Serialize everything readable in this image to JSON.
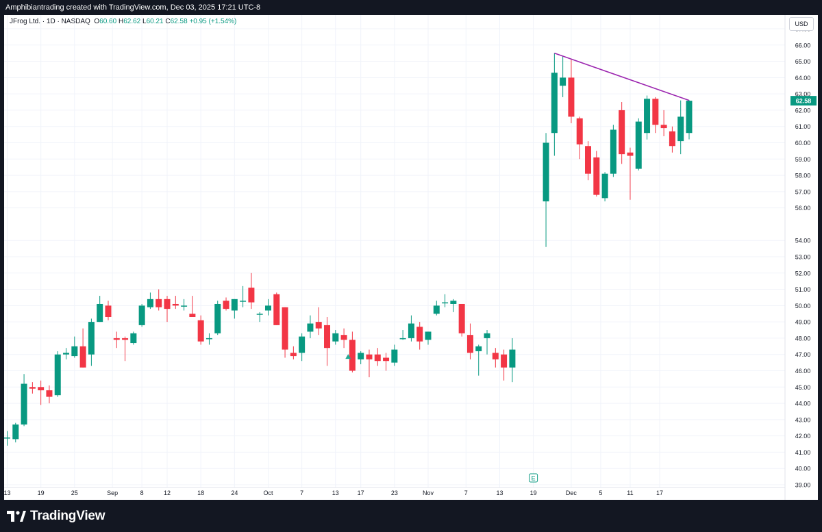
{
  "header": {
    "attribution": "Amphibiantrading created with TradingView.com, Dec 03, 2025 17:21 UTC-8"
  },
  "legend": {
    "symbol": "JFrog Ltd. · 1D · NASDAQ",
    "o_label": "O",
    "o_value": "60.60",
    "h_label": "H",
    "h_value": "62.62",
    "l_label": "L",
    "l_value": "60.21",
    "c_label": "C",
    "c_value": "62.58",
    "change": "+0.95 (+1.54%)"
  },
  "currency_button": "USD",
  "brand": {
    "name": "TradingView"
  },
  "colors": {
    "up": "#089981",
    "down": "#f23645",
    "trendline": "#9c27b0",
    "background": "#131722",
    "grid": "#f0f3fa"
  },
  "earnings_marker": "E",
  "chart_data": {
    "type": "candlestick",
    "title": "JFrog Ltd. · 1D · NASDAQ",
    "ylim": [
      39,
      67
    ],
    "y_ticks": [
      "67.00",
      "66.00",
      "65.00",
      "64.00",
      "63.00",
      "62.00",
      "61.00",
      "60.00",
      "59.00",
      "58.00",
      "57.00",
      "56.00",
      "54.00",
      "53.00",
      "52.00",
      "51.00",
      "50.00",
      "49.00",
      "48.00",
      "47.00",
      "46.00",
      "45.00",
      "44.00",
      "43.00",
      "42.00",
      "41.00",
      "40.00",
      "39.00"
    ],
    "last_price": "62.58",
    "x_tick_labels": [
      "13",
      "19",
      "25",
      "Sep",
      "8",
      "12",
      "18",
      "24",
      "Oct",
      "7",
      "13",
      "17",
      "23",
      "Nov",
      "7",
      "13",
      "19",
      "Dec",
      "5",
      "11",
      "17"
    ],
    "grid": true,
    "candles": [
      {
        "o": 41.9,
        "h": 42.3,
        "l": 41.4,
        "c": 41.9
      },
      {
        "o": 41.8,
        "h": 42.8,
        "l": 41.6,
        "c": 42.7
      },
      {
        "o": 42.7,
        "h": 45.8,
        "l": 42.6,
        "c": 45.2
      },
      {
        "o": 45.0,
        "h": 45.3,
        "l": 44.6,
        "c": 44.9
      },
      {
        "o": 45.0,
        "h": 45.4,
        "l": 43.9,
        "c": 44.8
      },
      {
        "o": 44.8,
        "h": 45.1,
        "l": 44.0,
        "c": 44.4
      },
      {
        "o": 44.5,
        "h": 47.2,
        "l": 44.4,
        "c": 47.0
      },
      {
        "o": 47.0,
        "h": 47.4,
        "l": 46.7,
        "c": 47.1
      },
      {
        "o": 46.9,
        "h": 48.1,
        "l": 46.8,
        "c": 47.5
      },
      {
        "o": 47.5,
        "h": 48.6,
        "l": 46.2,
        "c": 46.2
      },
      {
        "o": 47.0,
        "h": 49.2,
        "l": 46.3,
        "c": 49.0
      },
      {
        "o": 49.0,
        "h": 50.6,
        "l": 49.0,
        "c": 50.1
      },
      {
        "o": 50.0,
        "h": 50.3,
        "l": 49.1,
        "c": 49.3
      },
      {
        "o": 48.0,
        "h": 48.4,
        "l": 47.4,
        "c": 47.9
      },
      {
        "o": 48.0,
        "h": 48.1,
        "l": 46.6,
        "c": 47.9
      },
      {
        "o": 47.7,
        "h": 48.4,
        "l": 47.6,
        "c": 48.3
      },
      {
        "o": 48.8,
        "h": 50.1,
        "l": 48.7,
        "c": 50.0
      },
      {
        "o": 49.9,
        "h": 50.8,
        "l": 49.8,
        "c": 50.4
      },
      {
        "o": 50.4,
        "h": 51.0,
        "l": 49.7,
        "c": 49.9
      },
      {
        "o": 50.4,
        "h": 50.6,
        "l": 49.0,
        "c": 49.8
      },
      {
        "o": 50.1,
        "h": 50.6,
        "l": 49.8,
        "c": 50.0
      },
      {
        "o": 50.0,
        "h": 50.4,
        "l": 49.7,
        "c": 50.0
      },
      {
        "o": 49.5,
        "h": 50.6,
        "l": 49.3,
        "c": 49.3
      },
      {
        "o": 49.1,
        "h": 49.4,
        "l": 47.6,
        "c": 47.8
      },
      {
        "o": 48.0,
        "h": 48.3,
        "l": 47.6,
        "c": 48.0
      },
      {
        "o": 48.3,
        "h": 50.3,
        "l": 48.2,
        "c": 50.1
      },
      {
        "o": 50.3,
        "h": 50.5,
        "l": 49.7,
        "c": 49.8
      },
      {
        "o": 49.7,
        "h": 50.4,
        "l": 49.2,
        "c": 50.4
      },
      {
        "o": 50.3,
        "h": 51.2,
        "l": 49.9,
        "c": 50.3
      },
      {
        "o": 51.1,
        "h": 52.0,
        "l": 49.8,
        "c": 50.2
      },
      {
        "o": 49.5,
        "h": 49.6,
        "l": 49.0,
        "c": 49.5
      },
      {
        "o": 49.7,
        "h": 50.4,
        "l": 49.4,
        "c": 50.0
      },
      {
        "o": 50.7,
        "h": 50.8,
        "l": 48.8,
        "c": 48.8
      },
      {
        "o": 49.9,
        "h": 49.9,
        "l": 46.8,
        "c": 47.3
      },
      {
        "o": 47.1,
        "h": 47.5,
        "l": 46.7,
        "c": 46.9
      },
      {
        "o": 47.1,
        "h": 48.3,
        "l": 46.6,
        "c": 48.1
      },
      {
        "o": 48.4,
        "h": 49.4,
        "l": 48.0,
        "c": 48.9
      },
      {
        "o": 49.0,
        "h": 49.9,
        "l": 48.2,
        "c": 48.6
      },
      {
        "o": 48.8,
        "h": 49.3,
        "l": 46.3,
        "c": 47.4
      },
      {
        "o": 47.8,
        "h": 48.5,
        "l": 47.6,
        "c": 48.3
      },
      {
        "o": 48.2,
        "h": 48.6,
        "l": 47.4,
        "c": 47.9
      },
      {
        "o": 47.9,
        "h": 48.4,
        "l": 45.9,
        "c": 46.0
      },
      {
        "o": 46.7,
        "h": 47.2,
        "l": 46.4,
        "c": 47.1
      },
      {
        "o": 47.0,
        "h": 47.3,
        "l": 45.6,
        "c": 46.7
      },
      {
        "o": 47.0,
        "h": 47.4,
        "l": 46.3,
        "c": 46.6
      },
      {
        "o": 46.8,
        "h": 47.1,
        "l": 46.0,
        "c": 46.6
      },
      {
        "o": 46.5,
        "h": 47.6,
        "l": 46.3,
        "c": 47.3
      },
      {
        "o": 48.0,
        "h": 48.5,
        "l": 47.9,
        "c": 48.0
      },
      {
        "o": 48.0,
        "h": 49.4,
        "l": 47.8,
        "c": 48.9
      },
      {
        "o": 48.7,
        "h": 49.0,
        "l": 47.3,
        "c": 47.8
      },
      {
        "o": 47.9,
        "h": 48.4,
        "l": 47.6,
        "c": 48.4
      },
      {
        "o": 49.5,
        "h": 50.3,
        "l": 49.4,
        "c": 50.0
      },
      {
        "o": 50.2,
        "h": 50.7,
        "l": 49.9,
        "c": 50.2
      },
      {
        "o": 50.1,
        "h": 50.4,
        "l": 49.6,
        "c": 50.3
      },
      {
        "o": 50.1,
        "h": 50.1,
        "l": 48.1,
        "c": 48.3
      },
      {
        "o": 48.2,
        "h": 48.9,
        "l": 46.7,
        "c": 47.1
      },
      {
        "o": 47.2,
        "h": 47.6,
        "l": 45.7,
        "c": 47.5
      },
      {
        "o": 48.0,
        "h": 48.5,
        "l": 47.0,
        "c": 48.3
      },
      {
        "o": 47.1,
        "h": 47.4,
        "l": 46.2,
        "c": 46.7
      },
      {
        "o": 47.0,
        "h": 47.3,
        "l": 45.4,
        "c": 46.2
      },
      {
        "o": 46.2,
        "h": 48.0,
        "l": 45.3,
        "c": 47.3
      },
      {
        "o": 56.4,
        "h": 60.6,
        "l": 53.6,
        "c": 60.0
      },
      {
        "o": 60.6,
        "h": 65.5,
        "l": 59.2,
        "c": 64.3
      },
      {
        "o": 63.5,
        "h": 65.3,
        "l": 62.8,
        "c": 64.0
      },
      {
        "o": 64.0,
        "h": 65.1,
        "l": 61.2,
        "c": 61.6
      },
      {
        "o": 61.5,
        "h": 61.6,
        "l": 59.0,
        "c": 59.9
      },
      {
        "o": 59.8,
        "h": 60.1,
        "l": 57.7,
        "c": 58.1
      },
      {
        "o": 59.1,
        "h": 59.5,
        "l": 56.7,
        "c": 56.8
      },
      {
        "o": 56.6,
        "h": 58.2,
        "l": 56.4,
        "c": 58.1
      },
      {
        "o": 58.1,
        "h": 61.1,
        "l": 57.9,
        "c": 60.8
      },
      {
        "o": 62.0,
        "h": 62.5,
        "l": 58.7,
        "c": 59.3
      },
      {
        "o": 59.4,
        "h": 59.7,
        "l": 56.5,
        "c": 59.2
      },
      {
        "o": 58.4,
        "h": 61.5,
        "l": 58.3,
        "c": 61.3
      },
      {
        "o": 60.6,
        "h": 62.9,
        "l": 60.2,
        "c": 62.7
      },
      {
        "o": 62.7,
        "h": 62.8,
        "l": 60.6,
        "c": 61.1
      },
      {
        "o": 61.1,
        "h": 62.0,
        "l": 60.4,
        "c": 60.9
      },
      {
        "o": 60.7,
        "h": 61.0,
        "l": 59.4,
        "c": 59.8
      },
      {
        "o": 60.1,
        "h": 62.6,
        "l": 59.3,
        "c": 61.6
      },
      {
        "o": 60.6,
        "h": 62.62,
        "l": 60.21,
        "c": 62.58
      }
    ],
    "trendline": {
      "from": 65.5,
      "to": 62.6
    },
    "annotations": [
      "E"
    ]
  }
}
